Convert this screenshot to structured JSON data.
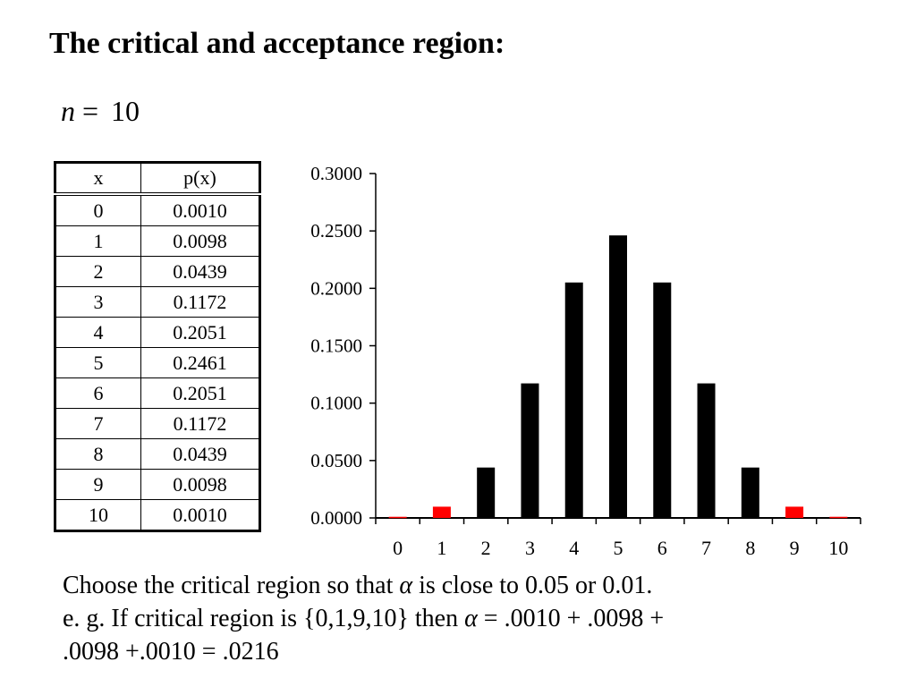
{
  "title": "The critical and acceptance region:",
  "n_label": "n",
  "n_equals": "=",
  "n_value": "10",
  "table": {
    "headers": [
      "x",
      "p(x)"
    ],
    "rows": [
      [
        "0",
        "0.0010"
      ],
      [
        "1",
        "0.0098"
      ],
      [
        "2",
        "0.0439"
      ],
      [
        "3",
        "0.1172"
      ],
      [
        "4",
        "0.2051"
      ],
      [
        "5",
        "0.2461"
      ],
      [
        "6",
        "0.2051"
      ],
      [
        "7",
        "0.1172"
      ],
      [
        "8",
        "0.0439"
      ],
      [
        "9",
        "0.0098"
      ],
      [
        "10",
        "0.0010"
      ]
    ]
  },
  "colors": {
    "critical": "#ff0000",
    "acceptance": "#000000"
  },
  "chart_data": {
    "type": "bar",
    "title": "",
    "xlabel": "",
    "ylabel": "",
    "categories": [
      "0",
      "1",
      "2",
      "3",
      "4",
      "5",
      "6",
      "7",
      "8",
      "9",
      "10"
    ],
    "values": [
      0.001,
      0.0098,
      0.0439,
      0.1172,
      0.2051,
      0.2461,
      0.2051,
      0.1172,
      0.0439,
      0.0098,
      0.001
    ],
    "bar_colors": [
      "#ff0000",
      "#ff0000",
      "#000000",
      "#000000",
      "#000000",
      "#000000",
      "#000000",
      "#000000",
      "#000000",
      "#ff0000",
      "#ff0000"
    ],
    "ylim": [
      0,
      0.3
    ],
    "yticks": [
      "0.0000",
      "0.0500",
      "0.1000",
      "0.1500",
      "0.2000",
      "0.2500",
      "0.3000"
    ],
    "grid": false,
    "legend": false
  },
  "explanation": {
    "line1_pre": "Choose the critical region so that ",
    "alpha": "α",
    "line1_post": " is close to 0.05 or 0.01.",
    "line2_pre": "e. g. If critical region is {0,1,9,10} then ",
    "line2_post": " = .0010 + .0098 +",
    "line3": ".0098 +.0010 = .0216"
  }
}
